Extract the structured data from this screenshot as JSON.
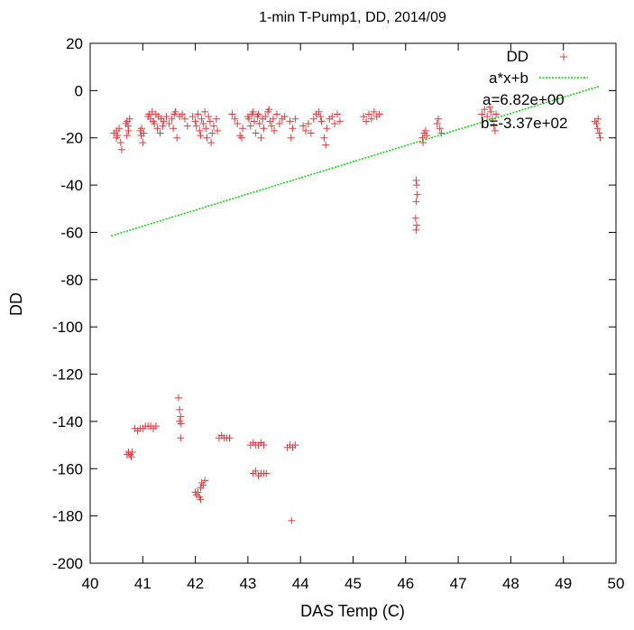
{
  "chart_data": {
    "type": "scatter",
    "title": "1-min T-Pump1, DD, 2014/09",
    "xlabel": "DAS Temp (C)",
    "ylabel": "DD",
    "xlim": [
      40,
      50
    ],
    "ylim": [
      -200,
      20
    ],
    "x_ticks": [
      "40",
      "41",
      "42",
      "43",
      "44",
      "45",
      "46",
      "47",
      "48",
      "49",
      "50"
    ],
    "y_ticks": [
      "20",
      "0",
      "-20",
      "-40",
      "-60",
      "-80",
      "-100",
      "-120",
      "-140",
      "-160",
      "-180",
      "-200"
    ],
    "legend_position": "top-right",
    "grid": false,
    "series": [
      {
        "name": "DD",
        "kind": "points",
        "marker": "+",
        "color": "#e8383d",
        "points": [
          [
            40.45,
            -18
          ],
          [
            40.5,
            -17
          ],
          [
            40.52,
            -19
          ],
          [
            40.55,
            -16
          ],
          [
            40.58,
            -22
          ],
          [
            40.6,
            -25
          ],
          [
            40.5,
            -20
          ],
          [
            40.7,
            -13
          ],
          [
            40.72,
            -15
          ],
          [
            40.75,
            -12
          ],
          [
            40.73,
            -17
          ],
          [
            40.7,
            -19
          ],
          [
            40.68,
            -14
          ],
          [
            40.95,
            -17
          ],
          [
            40.98,
            -16
          ],
          [
            41.0,
            -22
          ],
          [
            40.97,
            -19
          ],
          [
            41.02,
            -18
          ],
          [
            41.1,
            -11
          ],
          [
            41.12,
            -10
          ],
          [
            41.15,
            -12
          ],
          [
            41.18,
            -9
          ],
          [
            41.2,
            -13
          ],
          [
            41.25,
            -10
          ],
          [
            41.22,
            -14
          ],
          [
            41.3,
            -11
          ],
          [
            41.35,
            -12
          ],
          [
            41.38,
            -15
          ],
          [
            41.33,
            -18
          ],
          [
            41.28,
            -16
          ],
          [
            41.4,
            -13
          ],
          [
            41.45,
            -11
          ],
          [
            41.5,
            -14
          ],
          [
            41.55,
            -12
          ],
          [
            41.58,
            -16
          ],
          [
            41.6,
            -10
          ],
          [
            41.62,
            -9
          ],
          [
            41.65,
            -20
          ],
          [
            41.7,
            -11
          ],
          [
            41.75,
            -10
          ],
          [
            41.8,
            -12
          ],
          [
            41.85,
            -15
          ],
          [
            41.95,
            -11
          ],
          [
            42.0,
            -13
          ],
          [
            42.02,
            -15
          ],
          [
            42.05,
            -10
          ],
          [
            42.08,
            -17
          ],
          [
            42.1,
            -19
          ],
          [
            42.12,
            -12
          ],
          [
            42.15,
            -14
          ],
          [
            42.18,
            -9
          ],
          [
            42.2,
            -16
          ],
          [
            42.22,
            -20
          ],
          [
            42.25,
            -11
          ],
          [
            42.28,
            -13
          ],
          [
            42.3,
            -22
          ],
          [
            42.32,
            -18
          ],
          [
            42.35,
            -15
          ],
          [
            42.4,
            -12
          ],
          [
            42.42,
            -17
          ],
          [
            42.7,
            -10
          ],
          [
            42.75,
            -12
          ],
          [
            42.8,
            -14
          ],
          [
            42.85,
            -19
          ],
          [
            42.88,
            -20
          ],
          [
            42.9,
            -16
          ],
          [
            43.0,
            -11
          ],
          [
            43.02,
            -12
          ],
          [
            43.05,
            -15
          ],
          [
            43.08,
            -10
          ],
          [
            43.1,
            -9
          ],
          [
            43.12,
            -13
          ],
          [
            43.15,
            -18
          ],
          [
            43.18,
            -11
          ],
          [
            43.2,
            -10
          ],
          [
            43.22,
            -14
          ],
          [
            43.25,
            -20
          ],
          [
            43.28,
            -12
          ],
          [
            43.3,
            -16
          ],
          [
            43.33,
            -11
          ],
          [
            43.38,
            -9
          ],
          [
            43.4,
            -8
          ],
          [
            43.42,
            -13
          ],
          [
            43.45,
            -15
          ],
          [
            43.48,
            -12
          ],
          [
            43.5,
            -17
          ],
          [
            43.55,
            -10
          ],
          [
            43.6,
            -14
          ],
          [
            43.65,
            -12
          ],
          [
            43.7,
            -11
          ],
          [
            43.8,
            -13
          ],
          [
            43.85,
            -16
          ],
          [
            43.82,
            -20
          ],
          [
            43.9,
            -12
          ],
          [
            44.05,
            -15
          ],
          [
            44.1,
            -17
          ],
          [
            44.15,
            -14
          ],
          [
            44.2,
            -18
          ],
          [
            44.25,
            -12
          ],
          [
            44.3,
            -10
          ],
          [
            44.35,
            -9
          ],
          [
            44.38,
            -11
          ],
          [
            44.4,
            -13
          ],
          [
            44.45,
            -20
          ],
          [
            44.48,
            -23
          ],
          [
            44.5,
            -16
          ],
          [
            44.55,
            -12
          ],
          [
            44.6,
            -11
          ],
          [
            44.65,
            -14
          ],
          [
            44.7,
            -10
          ],
          [
            44.75,
            -13
          ],
          [
            45.2,
            -11
          ],
          [
            45.25,
            -13
          ],
          [
            45.3,
            -10
          ],
          [
            45.35,
            -12
          ],
          [
            45.4,
            -9
          ],
          [
            45.45,
            -11
          ],
          [
            45.5,
            -10
          ],
          [
            46.2,
            -38
          ],
          [
            46.21,
            -40
          ],
          [
            46.22,
            -44
          ],
          [
            46.2,
            -47
          ],
          [
            46.19,
            -54
          ],
          [
            46.21,
            -57
          ],
          [
            46.2,
            -59
          ],
          [
            46.32,
            -20
          ],
          [
            46.35,
            -18
          ],
          [
            46.38,
            -17
          ],
          [
            46.4,
            -19
          ],
          [
            46.33,
            -22
          ],
          [
            46.6,
            -14
          ],
          [
            46.62,
            -12
          ],
          [
            46.65,
            -16
          ],
          [
            46.68,
            -18
          ],
          [
            47.45,
            -10
          ],
          [
            47.5,
            -8
          ],
          [
            47.55,
            -11
          ],
          [
            47.6,
            -7
          ],
          [
            47.62,
            -9
          ],
          [
            47.65,
            -12
          ],
          [
            47.68,
            -15
          ],
          [
            47.7,
            -17
          ],
          [
            47.72,
            -10
          ],
          [
            49.6,
            -13
          ],
          [
            49.63,
            -14
          ],
          [
            49.65,
            -16
          ],
          [
            49.68,
            -18
          ],
          [
            49.7,
            -20
          ],
          [
            49.66,
            -12
          ],
          [
            40.7,
            -154
          ],
          [
            40.73,
            -153
          ],
          [
            40.76,
            -154
          ],
          [
            40.78,
            -155
          ],
          [
            40.8,
            -153
          ],
          [
            40.85,
            -143
          ],
          [
            40.9,
            -144
          ],
          [
            40.95,
            -143
          ],
          [
            41.0,
            -143
          ],
          [
            41.05,
            -142
          ],
          [
            41.1,
            -142
          ],
          [
            41.15,
            -142
          ],
          [
            41.2,
            -143
          ],
          [
            41.25,
            -142
          ],
          [
            41.68,
            -130
          ],
          [
            41.7,
            -135
          ],
          [
            41.72,
            -138
          ],
          [
            41.7,
            -140
          ],
          [
            41.73,
            -141
          ],
          [
            41.72,
            -147
          ],
          [
            42.0,
            -170
          ],
          [
            42.02,
            -171
          ],
          [
            42.05,
            -170
          ],
          [
            42.08,
            -172
          ],
          [
            42.1,
            -168
          ],
          [
            42.12,
            -166
          ],
          [
            42.15,
            -167
          ],
          [
            42.18,
            -165
          ],
          [
            42.1,
            -173
          ],
          [
            42.45,
            -147
          ],
          [
            42.5,
            -146
          ],
          [
            42.55,
            -147
          ],
          [
            42.6,
            -147
          ],
          [
            42.65,
            -147
          ],
          [
            43.05,
            -150
          ],
          [
            43.1,
            -149
          ],
          [
            43.15,
            -150
          ],
          [
            43.2,
            -150
          ],
          [
            43.25,
            -149
          ],
          [
            43.3,
            -150
          ],
          [
            43.1,
            -162
          ],
          [
            43.15,
            -161
          ],
          [
            43.2,
            -163
          ],
          [
            43.25,
            -162
          ],
          [
            43.3,
            -162
          ],
          [
            43.35,
            -162
          ],
          [
            43.75,
            -151
          ],
          [
            43.8,
            -150
          ],
          [
            43.85,
            -151
          ],
          [
            43.9,
            -150
          ],
          [
            43.83,
            -182
          ]
        ]
      },
      {
        "name": "a*x+b",
        "kind": "line",
        "color": "#00dd00",
        "x_range": [
          40.4,
          49.7
        ],
        "a": 6.82,
        "b": -337
      }
    ],
    "annotations": [
      "a=6.82e+00",
      "b=-3.37e+02"
    ]
  }
}
